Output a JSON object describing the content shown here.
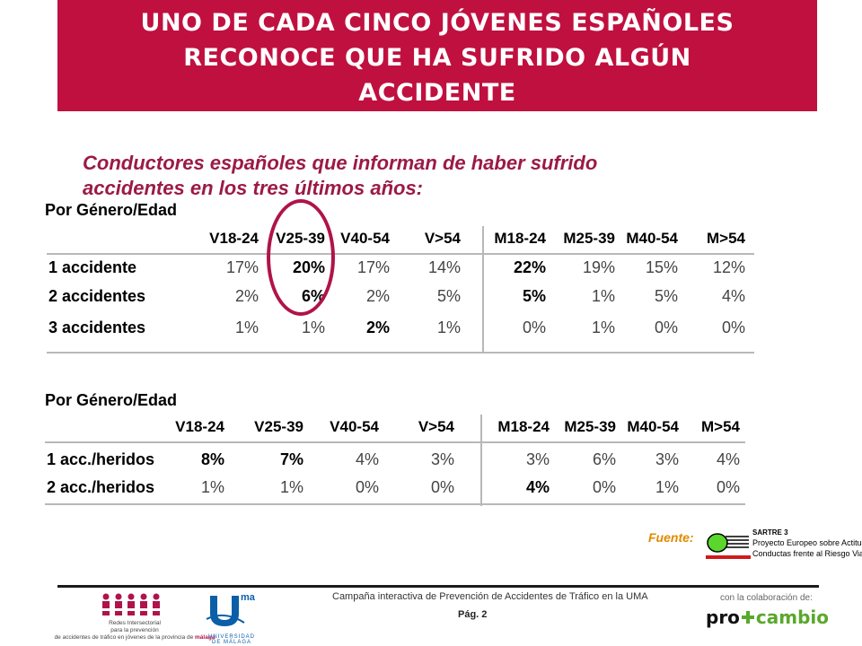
{
  "header": {
    "title_line1": "UNO DE CADA CINCO JÓVENES ESPAÑOLES",
    "title_line2": "RECONOCE QUE HA SUFRIDO ALGÚN",
    "title_line3": "ACCIDENTE"
  },
  "subtitle": {
    "line1": "Conductores españoles que informan de haber sufrido",
    "line2": "accidentes en los tres últimos años:"
  },
  "table1": {
    "caption": "Por Género/Edad",
    "columns": [
      "V18-24",
      "V25-39",
      "V40-54",
      "V>54",
      "M18-24",
      "M25-39",
      "M40-54",
      "M>54"
    ],
    "rows": [
      {
        "label": "1 accidente",
        "values": [
          "17%",
          "20%",
          "17%",
          "14%",
          "22%",
          "19%",
          "15%",
          "12%"
        ]
      },
      {
        "label": "2 accidentes",
        "values": [
          "2%",
          "6%",
          "2%",
          "5%",
          "5%",
          "1%",
          "5%",
          "4%"
        ]
      },
      {
        "label": "3 accidentes",
        "values": [
          "1%",
          "1%",
          "2%",
          "1%",
          "0%",
          "1%",
          "0%",
          "0%"
        ]
      }
    ]
  },
  "table2": {
    "caption": "Por Género/Edad",
    "columns": [
      "V18-24",
      "V25-39",
      "V40-54",
      "V>54",
      "M18-24",
      "M25-39",
      "M40-54",
      "M>54"
    ],
    "rows": [
      {
        "label": "1 acc./heridos",
        "values": [
          "8%",
          "7%",
          "4%",
          "3%",
          "3%",
          "6%",
          "3%",
          "4%"
        ]
      },
      {
        "label": "2 acc./heridos",
        "values": [
          "1%",
          "1%",
          "0%",
          "0%",
          "4%",
          "0%",
          "1%",
          "0%"
        ]
      }
    ]
  },
  "source": {
    "label": "Fuente:",
    "logo_title": "SARTRE 3",
    "logo_line1": "Proyecto Europeo sobre Actitudes y",
    "logo_line2": "Conductas frente al Riesgo Vial"
  },
  "footer": {
    "campaign": "Campaña interactiva de Prevención de Accidentes de Tráfico en la UMA",
    "page": "Pág. 2",
    "collaboration": "con la colaboración de:",
    "sponsor_pro": "pro",
    "sponsor_cambio": "cambio",
    "logo1_line1": "Redes Intersectorial",
    "logo1_line2": "para la prevención",
    "logo1_line3": "de accidentes de tráfico en jóvenes de la provincia de",
    "logo1_place": "málaga",
    "logo2_sup": "ma",
    "logo2_caption": "UNIVERSIDAD DE MÁLAGA"
  },
  "colors": {
    "banner": "#c0103f",
    "subtitle": "#9b1a47",
    "highlight_circle": "#b0134a",
    "source_label": "#e08a00",
    "sponsor_green": "#5aa82c"
  },
  "icons": {
    "sartre_logo": "green-bullet-with-speed-lines",
    "uma_logo": "u-letter-emblem",
    "redes_logo": "people-figures-emblem"
  }
}
